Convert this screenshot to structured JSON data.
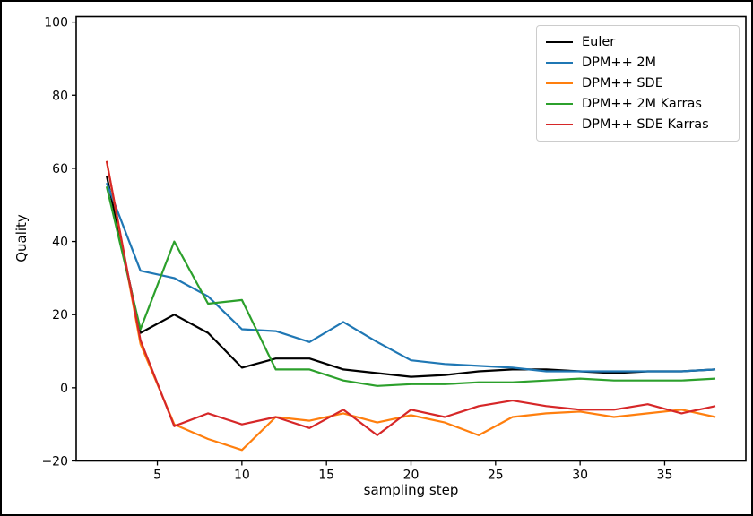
{
  "figure": {
    "background": "#ffffff",
    "frame_color": "#000000",
    "text_color": "#000000",
    "legend_border_color": "#cccccc"
  },
  "chart_data": {
    "type": "line",
    "title": "",
    "xlabel": "sampling step",
    "ylabel": "Quality",
    "grid": false,
    "legend_position": "upper right",
    "xlim": [
      0.2,
      39.8
    ],
    "ylim": [
      -20,
      101.5
    ],
    "xticks": [
      5,
      10,
      15,
      20,
      25,
      30,
      35
    ],
    "yticks": [
      -20,
      0,
      20,
      40,
      60,
      80,
      100
    ],
    "x": [
      2,
      4,
      6,
      8,
      10,
      12,
      14,
      16,
      18,
      20,
      22,
      24,
      26,
      28,
      30,
      32,
      34,
      36,
      38
    ],
    "series": [
      {
        "name": "Euler",
        "color": "#000000",
        "values": [
          58,
          15,
          20,
          15,
          5.5,
          8,
          8,
          5,
          4,
          3,
          3.5,
          4.5,
          5,
          5,
          4.5,
          4,
          4.5,
          4.5,
          5
        ]
      },
      {
        "name": "DPM++ 2M",
        "color": "#1f77b4",
        "values": [
          56,
          32,
          30,
          25,
          16,
          15.5,
          12.5,
          18,
          12.5,
          7.5,
          6.5,
          6,
          5.5,
          4.5,
          4.5,
          4.5,
          4.5,
          4.5,
          5
        ]
      },
      {
        "name": "DPM++ SDE",
        "color": "#ff7f0e",
        "values": [
          62,
          12,
          -10,
          -14,
          -17,
          -8,
          -9,
          -7,
          -9.5,
          -7.5,
          -9.5,
          -13,
          -8,
          -7,
          -6.5,
          -8,
          -7,
          -6,
          -8
        ]
      },
      {
        "name": "DPM++ 2M Karras",
        "color": "#2ca02c",
        "values": [
          55,
          16,
          40,
          23,
          24,
          5,
          5,
          2,
          0.5,
          1,
          1,
          1.5,
          1.5,
          2,
          2.5,
          2,
          2,
          2,
          2.5
        ]
      },
      {
        "name": "DPM++ SDE Karras",
        "color": "#d62728",
        "values": [
          62,
          13,
          -10.5,
          -7,
          -10,
          -8,
          -11,
          -6,
          -13,
          -6,
          -8,
          -5,
          -3.5,
          -5,
          -6,
          -6,
          -4.5,
          -7,
          -5
        ]
      }
    ]
  }
}
